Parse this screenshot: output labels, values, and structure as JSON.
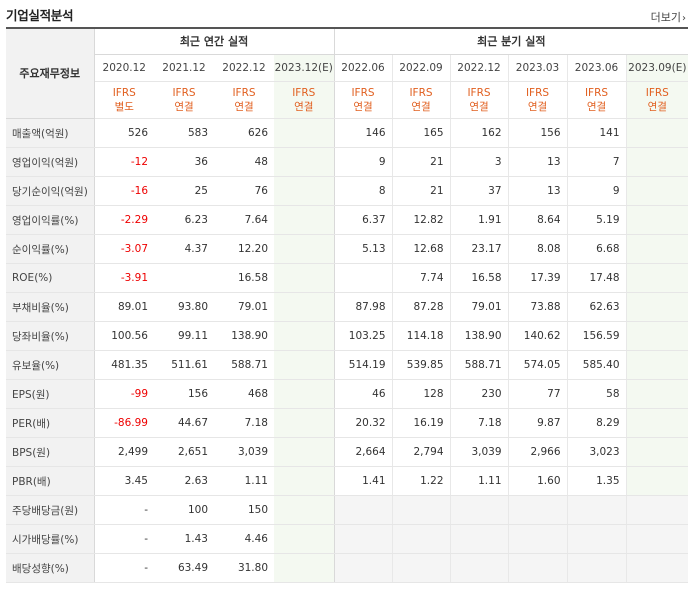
{
  "section_title": "기업실적분석",
  "more_link": "더보기",
  "header": {
    "left_label": "주요재무정보",
    "annual_title": "최근 연간 실적",
    "quarter_title": "최근 분기 실적",
    "annual_periods": [
      "2020.12",
      "2021.12",
      "2022.12",
      "2023.12(E)"
    ],
    "quarter_periods": [
      "2022.06",
      "2022.09",
      "2022.12",
      "2023.03",
      "2023.06",
      "2023.09(E)"
    ],
    "annual_basis_top": [
      "IFRS",
      "IFRS",
      "IFRS",
      "IFRS"
    ],
    "annual_basis_bottom": [
      "별도",
      "연결",
      "연결",
      "연결"
    ],
    "quarter_basis_top": [
      "IFRS",
      "IFRS",
      "IFRS",
      "IFRS",
      "IFRS",
      "IFRS"
    ],
    "quarter_basis_bottom": [
      "연결",
      "연결",
      "연결",
      "연결",
      "연결",
      "연결"
    ]
  },
  "rows": [
    {
      "label": "매출액(억원)",
      "annual": [
        "526",
        "583",
        "626",
        ""
      ],
      "quarter": [
        "146",
        "165",
        "162",
        "156",
        "141",
        ""
      ]
    },
    {
      "label": "영업이익(억원)",
      "annual": [
        "-12",
        "36",
        "48",
        ""
      ],
      "quarter": [
        "9",
        "21",
        "3",
        "13",
        "7",
        ""
      ]
    },
    {
      "label": "당기순이익(억원)",
      "annual": [
        "-16",
        "25",
        "76",
        ""
      ],
      "quarter": [
        "8",
        "21",
        "37",
        "13",
        "9",
        ""
      ]
    },
    {
      "label": "영업이익률(%)",
      "annual": [
        "-2.29",
        "6.23",
        "7.64",
        ""
      ],
      "quarter": [
        "6.37",
        "12.82",
        "1.91",
        "8.64",
        "5.19",
        ""
      ]
    },
    {
      "label": "순이익률(%)",
      "annual": [
        "-3.07",
        "4.37",
        "12.20",
        ""
      ],
      "quarter": [
        "5.13",
        "12.68",
        "23.17",
        "8.08",
        "6.68",
        ""
      ]
    },
    {
      "label": "ROE(%)",
      "annual": [
        "-3.91",
        "",
        "16.58",
        ""
      ],
      "quarter": [
        "",
        "7.74",
        "16.58",
        "17.39",
        "17.48",
        ""
      ]
    },
    {
      "label": "부채비율(%)",
      "annual": [
        "89.01",
        "93.80",
        "79.01",
        ""
      ],
      "quarter": [
        "87.98",
        "87.28",
        "79.01",
        "73.88",
        "62.63",
        ""
      ]
    },
    {
      "label": "당좌비율(%)",
      "annual": [
        "100.56",
        "99.11",
        "138.90",
        ""
      ],
      "quarter": [
        "103.25",
        "114.18",
        "138.90",
        "140.62",
        "156.59",
        ""
      ]
    },
    {
      "label": "유보율(%)",
      "annual": [
        "481.35",
        "511.61",
        "588.71",
        ""
      ],
      "quarter": [
        "514.19",
        "539.85",
        "588.71",
        "574.05",
        "585.40",
        ""
      ]
    },
    {
      "label": "EPS(원)",
      "annual": [
        "-99",
        "156",
        "468",
        ""
      ],
      "quarter": [
        "46",
        "128",
        "230",
        "77",
        "58",
        ""
      ]
    },
    {
      "label": "PER(배)",
      "annual": [
        "-86.99",
        "44.67",
        "7.18",
        ""
      ],
      "quarter": [
        "20.32",
        "16.19",
        "7.18",
        "9.87",
        "8.29",
        ""
      ]
    },
    {
      "label": "BPS(원)",
      "annual": [
        "2,499",
        "2,651",
        "3,039",
        ""
      ],
      "quarter": [
        "2,664",
        "2,794",
        "3,039",
        "2,966",
        "3,023",
        ""
      ]
    },
    {
      "label": "PBR(배)",
      "annual": [
        "3.45",
        "2.63",
        "1.11",
        ""
      ],
      "quarter": [
        "1.41",
        "1.22",
        "1.11",
        "1.60",
        "1.35",
        ""
      ]
    },
    {
      "label": "주당배당금(원)",
      "annual": [
        "-",
        "100",
        "150",
        ""
      ],
      "quarter": [
        "",
        "",
        "",
        "",
        "",
        ""
      ]
    },
    {
      "label": "시가배당률(%)",
      "annual": [
        "-",
        "1.43",
        "4.46",
        ""
      ],
      "quarter": [
        "",
        "",
        "",
        "",
        "",
        ""
      ]
    },
    {
      "label": "배당성향(%)",
      "annual": [
        "-",
        "63.49",
        "31.80",
        ""
      ],
      "quarter": [
        "",
        "",
        "",
        "",
        "",
        ""
      ]
    }
  ]
}
